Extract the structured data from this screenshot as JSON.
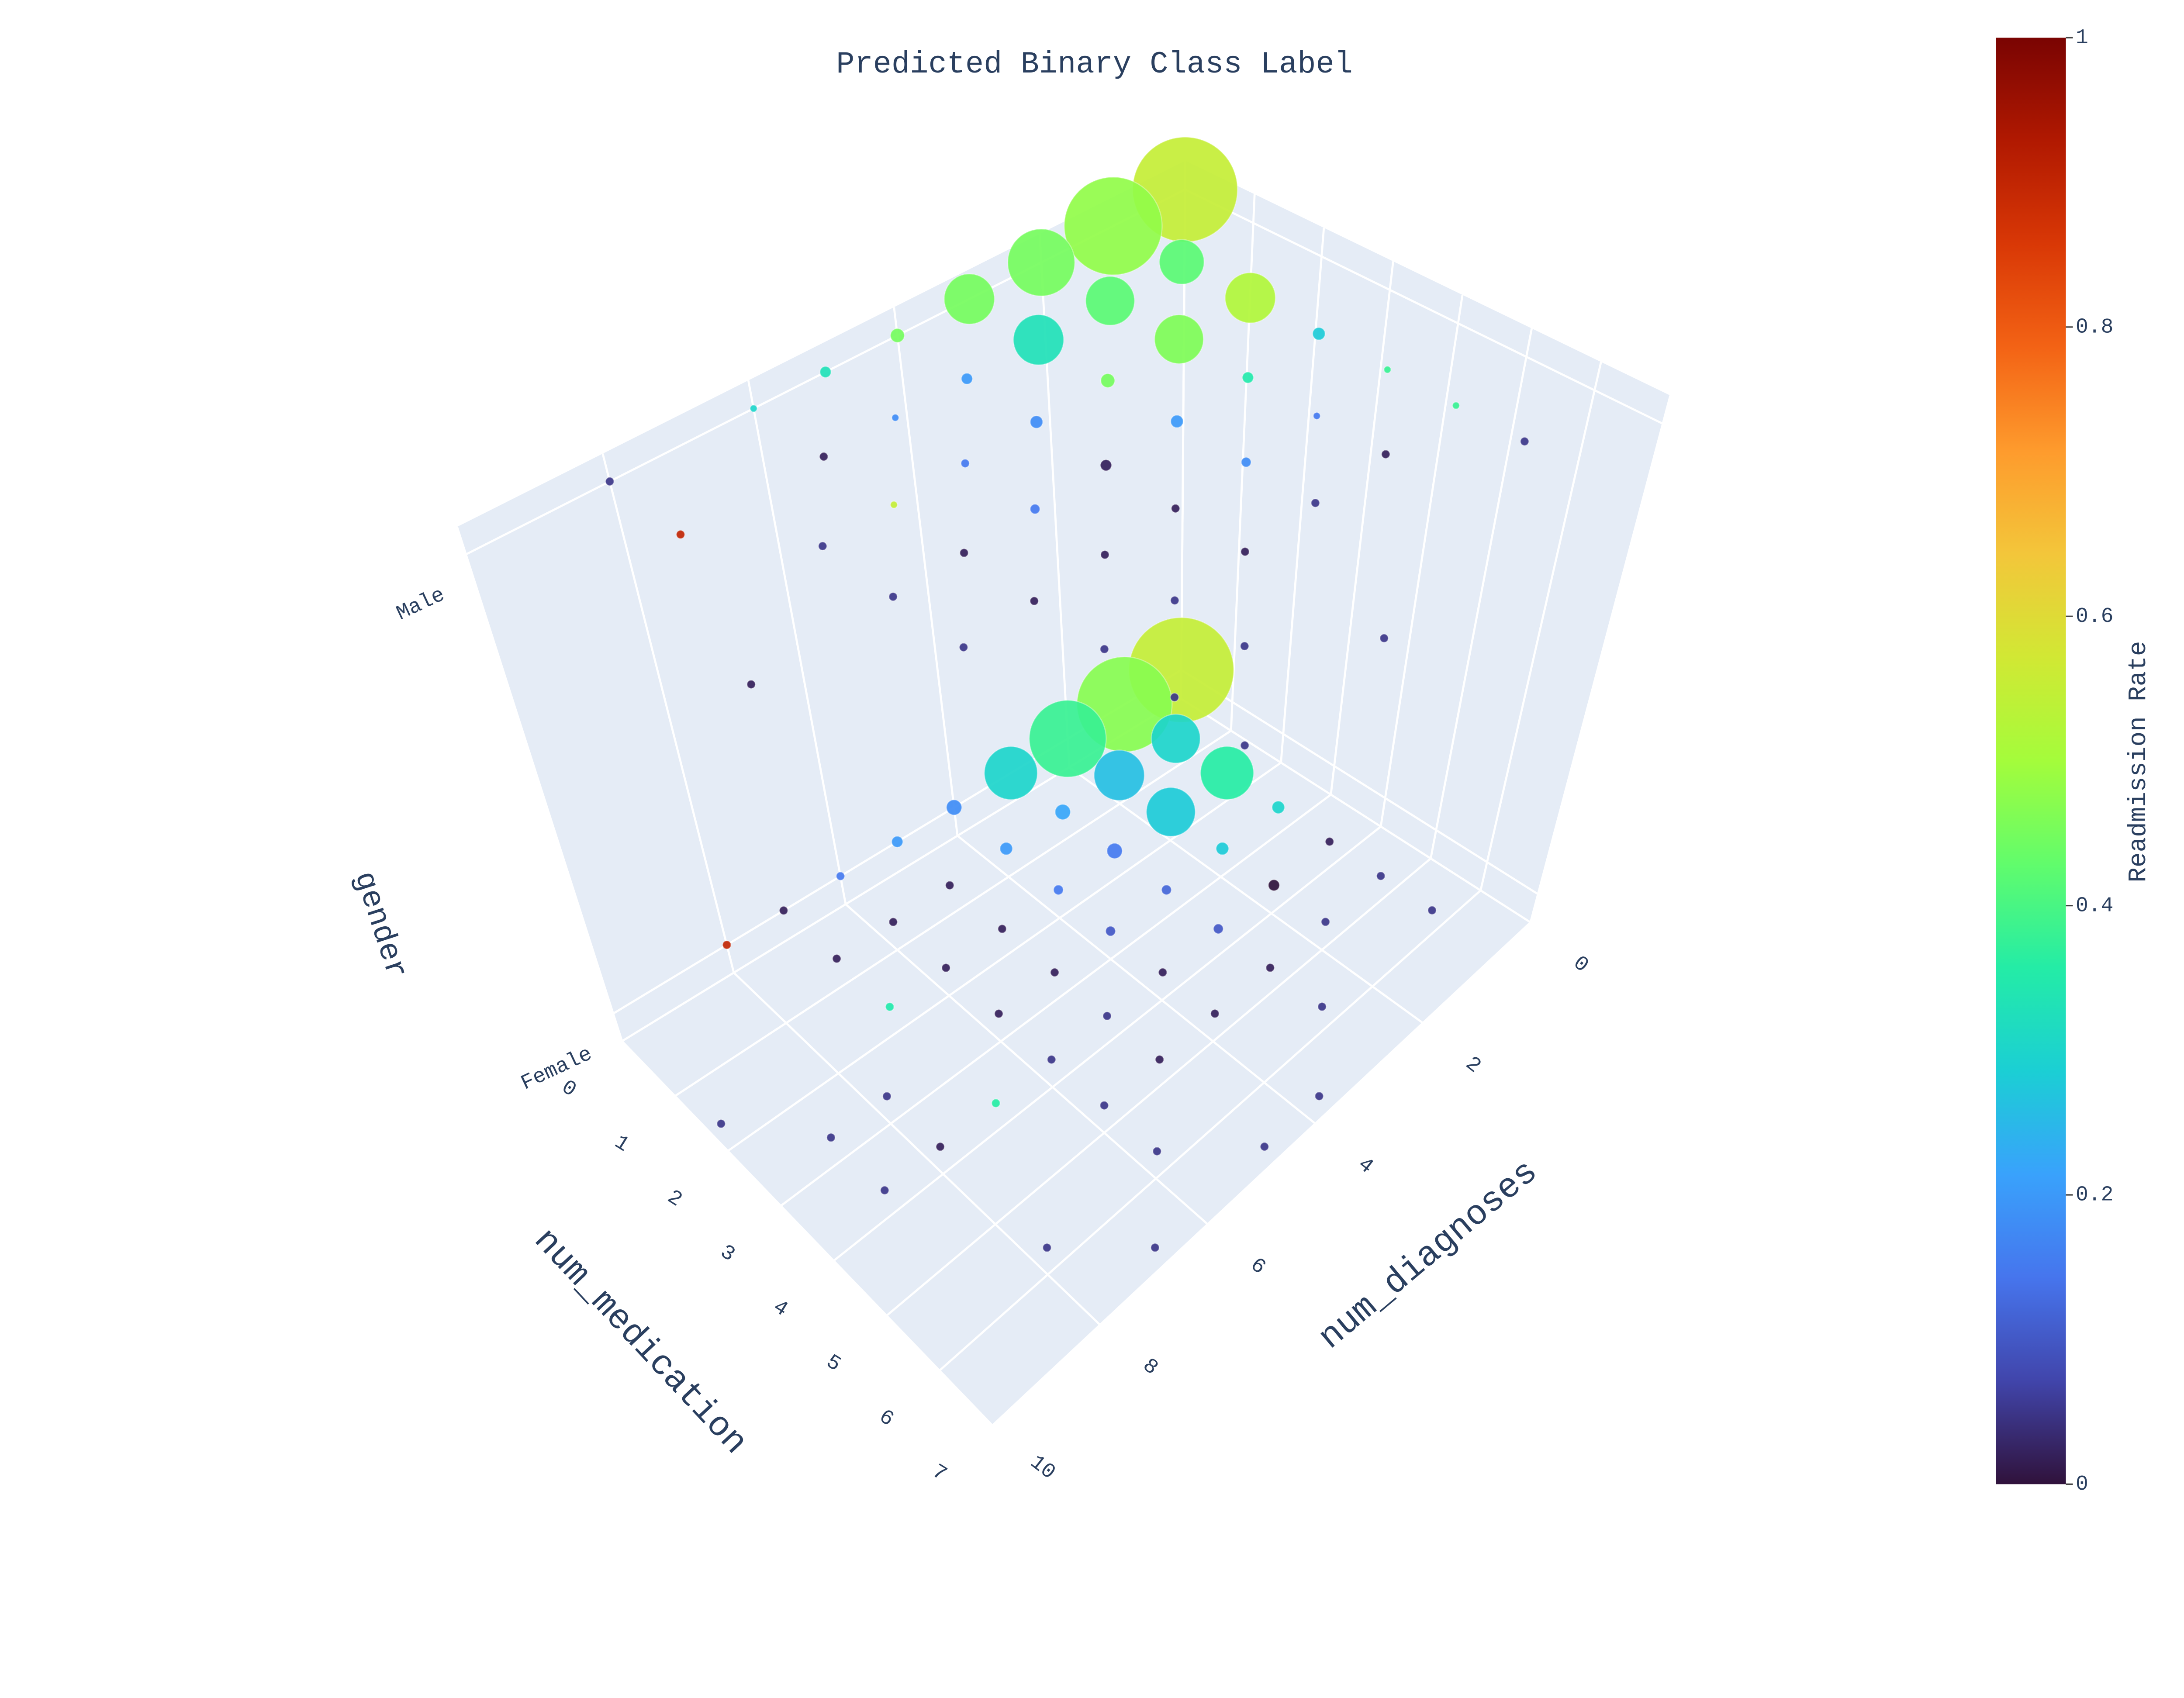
{
  "chart_data": {
    "type": "scatter3d",
    "title": "Predicted Binary Class Label",
    "x_label": "num_medication",
    "y_label": "num_diagnoses",
    "z_label": "gender",
    "colorbar_title": "Readmission Rate",
    "xlim": [
      0,
      7
    ],
    "ylim": [
      0,
      10
    ],
    "zlim": [
      -0.06,
      1.06
    ],
    "xticks": [
      0,
      1,
      2,
      3,
      4,
      5,
      6,
      7
    ],
    "yticks": [
      0,
      2,
      4,
      6,
      8,
      10
    ],
    "zticks": [
      {
        "value": 0,
        "label": "Female"
      },
      {
        "value": 1,
        "label": "Male"
      }
    ],
    "clim": [
      0,
      1
    ],
    "cticks": [
      0,
      0.2,
      0.4,
      0.6,
      0.8,
      1
    ],
    "colorscale": [
      "#30123b",
      "#4145ab",
      "#4675ed",
      "#39a2fc",
      "#1bcfd4",
      "#24eca6",
      "#61fc6c",
      "#a4fc3b",
      "#d1e834",
      "#f3c63a",
      "#fe9b2d",
      "#f36315",
      "#d93806",
      "#b11901",
      "#7a0402"
    ],
    "grid": true,
    "background_color": "#e5ecf6",
    "x": [
      0,
      0,
      0,
      1,
      0,
      1,
      2,
      0,
      1,
      2,
      3,
      0,
      1,
      2,
      3,
      4,
      0,
      1,
      2,
      3,
      4,
      5,
      0,
      1,
      2,
      3,
      4,
      5,
      6,
      0,
      1,
      2,
      3,
      4,
      5,
      2,
      3,
      4,
      5,
      6,
      4,
      5,
      3,
      4,
      5,
      7,
      2,
      3,
      4,
      6,
      7,
      4,
      6,
      7,
      0,
      0,
      0,
      1,
      0,
      1,
      2,
      0,
      1,
      2,
      3,
      0,
      1,
      2,
      3,
      4,
      0,
      1,
      2,
      3,
      4,
      5,
      1,
      2,
      3,
      4,
      5,
      6,
      0,
      2,
      3,
      4,
      5,
      1,
      2,
      3,
      4,
      5,
      3,
      4,
      5,
      4,
      5,
      6,
      7,
      3,
      6,
      7
    ],
    "y": [
      0,
      1,
      2,
      1,
      3,
      2,
      1,
      4,
      3,
      2,
      1,
      5,
      4,
      3,
      2,
      1,
      6,
      5,
      4,
      3,
      2,
      1,
      7,
      6,
      5,
      4,
      3,
      2,
      1,
      8,
      7,
      6,
      5,
      4,
      3,
      7,
      6,
      5,
      4,
      3,
      6,
      5,
      8,
      7,
      6,
      4,
      10,
      9,
      8,
      6,
      5,
      9,
      8,
      7,
      0,
      1,
      2,
      1,
      3,
      2,
      1,
      4,
      3,
      2,
      1,
      5,
      4,
      3,
      2,
      1,
      6,
      5,
      4,
      3,
      2,
      1,
      6,
      5,
      4,
      3,
      2,
      1,
      8,
      6,
      5,
      4,
      3,
      8,
      7,
      6,
      5,
      4,
      7,
      6,
      5,
      7,
      6,
      5,
      4,
      9,
      6,
      6
    ],
    "z": [
      0,
      0,
      0,
      0,
      0,
      0,
      0,
      0,
      0,
      0,
      0,
      0,
      0,
      0,
      0,
      0,
      0,
      0,
      0,
      0,
      0,
      0,
      0,
      0,
      0,
      0,
      0,
      0,
      0,
      0,
      0,
      0,
      0,
      0,
      0,
      0,
      0,
      0,
      0,
      0,
      0,
      0,
      0,
      0,
      0,
      0,
      0,
      0,
      0,
      0,
      0,
      0,
      0,
      0,
      1,
      1,
      1,
      1,
      1,
      1,
      1,
      1,
      1,
      1,
      1,
      1,
      1,
      1,
      1,
      1,
      1,
      1,
      1,
      1,
      1,
      1,
      1,
      1,
      1,
      1,
      1,
      1,
      1,
      1,
      1,
      1,
      1,
      1,
      1,
      1,
      1,
      1,
      1,
      1,
      1,
      1,
      1,
      1,
      1,
      1,
      1,
      1
    ],
    "color_values": [
      0.55,
      0.47,
      0.38,
      0.3,
      0.3,
      0.26,
      0.36,
      0.18,
      0.22,
      0.28,
      0.3,
      0.2,
      0.2,
      0.15,
      0.28,
      0.02,
      0.15,
      0.02,
      0.15,
      0.12,
      0,
      0.05,
      0.02,
      0.02,
      0.02,
      0.1,
      0.1,
      0.05,
      0.05,
      0.9,
      0.02,
      0.02,
      0.02,
      0.02,
      0.02,
      0.35,
      0.02,
      0.05,
      0.02,
      0.05,
      0.05,
      0.02,
      0.05,
      0.36,
      0.05,
      0.05,
      0.05,
      0.05,
      0.02,
      0.05,
      0.05,
      0.05,
      0.05,
      0.05,
      0.55,
      0.48,
      0.45,
      0.42,
      0.45,
      0.42,
      0.52,
      0.45,
      0.33,
      0.46,
      0.28,
      0.33,
      0.2,
      0.45,
      0.35,
      0.38,
      0.3,
      0.18,
      0.18,
      0.2,
      0.15,
      0.38,
      0.02,
      0.15,
      0.02,
      0.18,
      0.02,
      0.05,
      0.05,
      0.55,
      0.15,
      0.02,
      0.05,
      0.9,
      0.05,
      0.02,
      0.02,
      0.02,
      0.05,
      0.02,
      0.05,
      0.05,
      0.05,
      0.05,
      0.05,
      0.02,
      0.05,
      0.05
    ],
    "marker_size": [
      75,
      68,
      55,
      35,
      38,
      36,
      38,
      11,
      11,
      35,
      9,
      8,
      9,
      11,
      9,
      6,
      6,
      6,
      7,
      7,
      8,
      6,
      6,
      6,
      6,
      7,
      7,
      6,
      6,
      6,
      6,
      6,
      6,
      6,
      6,
      6,
      6,
      6,
      6,
      6,
      6,
      6,
      6,
      6,
      6,
      6,
      6,
      6,
      6,
      6,
      6,
      6,
      6,
      6,
      75,
      70,
      48,
      32,
      36,
      35,
      36,
      10,
      36,
      35,
      9,
      8,
      8,
      10,
      8,
      5,
      5,
      5,
      9,
      9,
      5,
      5,
      6,
      6,
      8,
      7,
      6,
      6,
      6,
      5,
      7,
      6,
      6,
      6,
      6,
      6,
      6,
      6,
      6,
      6,
      6,
      6,
      6,
      6,
      6,
      6,
      6,
      6
    ]
  }
}
